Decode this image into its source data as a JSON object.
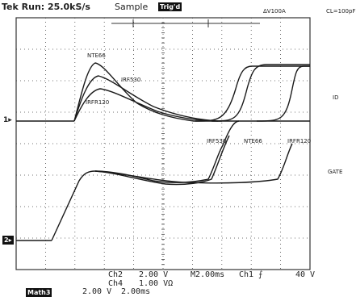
{
  "status": {
    "run": "Tek Run: 25.0kS/s",
    "mode": "Sample",
    "trig_badge": "Trig'd",
    "top_right": "ΔV100A",
    "corner_note": "CL=100pF"
  },
  "side_labels": {
    "id": "ID",
    "gate": "GATE"
  },
  "trace_labels": [
    "NTE66",
    "IRF530",
    "IRFR120",
    "IRF530",
    "NTE66",
    "IRFR120"
  ],
  "channel_markers": {
    "ch_top": "1▸",
    "ch_bottom": "2▸"
  },
  "readouts": {
    "ch2": "Ch2",
    "ch2_scale": "2.00 V",
    "ch4": "Ch4",
    "ch4_scale": "1.00 VΩ",
    "timebase": "M2.00ms",
    "trigger": "Ch1 ⨍",
    "trigger_level": "40 V",
    "math_badge": "Math3",
    "math_scale": "2.00 V",
    "math_time": "2.00ms"
  },
  "colors": {
    "grid": "#444444",
    "trace": "#1a1a1a",
    "background": "#ffffff"
  }
}
